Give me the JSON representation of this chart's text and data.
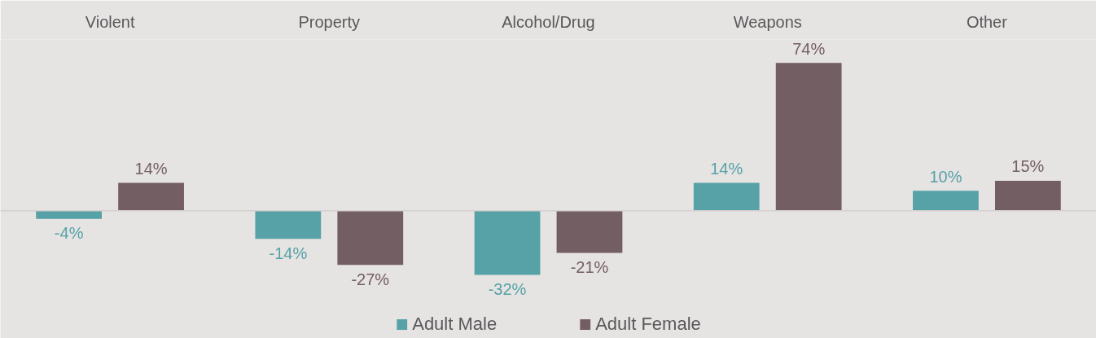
{
  "chart_data": {
    "type": "bar",
    "categories": [
      "Violent",
      "Property",
      "Alcohol/Drug",
      "Weapons",
      "Other"
    ],
    "series": [
      {
        "name": "Adult Male",
        "color": "#56a2a6",
        "values": [
          -4,
          -14,
          -32,
          14,
          10
        ],
        "value_labels": [
          "-4%",
          "-14%",
          "-32%",
          "14%",
          "10%"
        ]
      },
      {
        "name": "Adult Female",
        "color": "#735e63",
        "values": [
          14,
          -27,
          -21,
          74,
          15
        ],
        "value_labels": [
          "14%",
          "-27%",
          "-21%",
          "74%",
          "15%"
        ]
      }
    ],
    "legend": "bottom"
  }
}
